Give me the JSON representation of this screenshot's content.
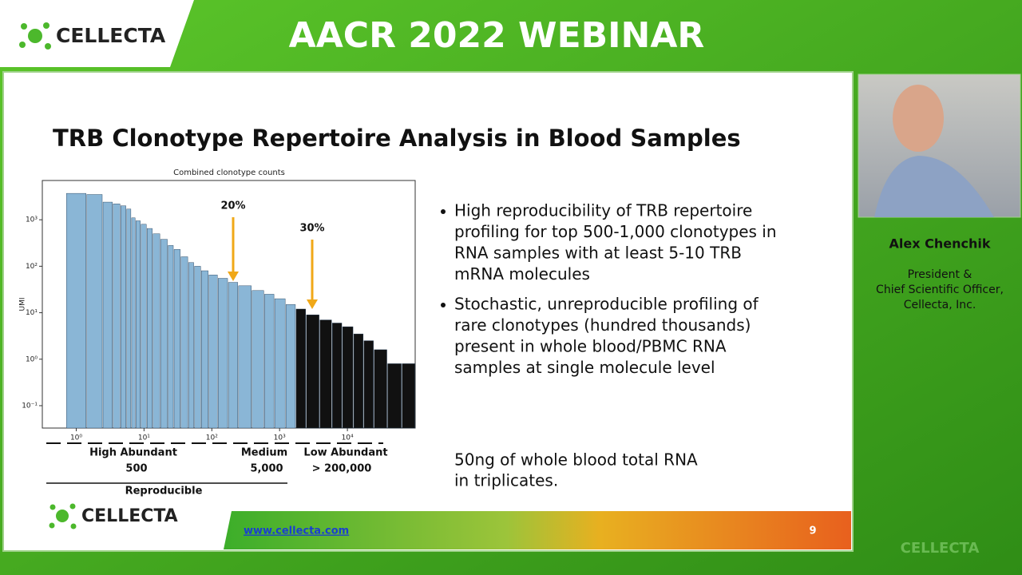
{
  "header": {
    "logo": "CELLECTA",
    "title": "AACR 2022 WEBINAR"
  },
  "slide": {
    "title": "TRB Clonotype Repertoire Analysis in Blood Samples",
    "bullets": [
      [
        "High reproducibility of TRB repertoire",
        "profiling for top 500-1,000 clonotypes in",
        "RNA samples with at least 5-10 TRB",
        "mRNA molecules"
      ],
      [
        "Stochastic, unreproducible profiling of",
        "rare clonotypes (hundred thousands)",
        "present in whole blood/PBMC RNA",
        "samples at single molecule level"
      ]
    ],
    "note": [
      "50ng of whole blood total RNA",
      "in triplicates."
    ],
    "groups": [
      {
        "name": "High Abundant",
        "count": "500"
      },
      {
        "name": "Medium",
        "count": "5,000"
      },
      {
        "name": "Low Abundant",
        "count": "> 200,000"
      }
    ],
    "reproducible": "Reproducible",
    "footer_logo": "CELLECTA",
    "url": "www.cellecta.com",
    "page": "9"
  },
  "chart_data": {
    "type": "bar",
    "title": "Combined clonotype counts",
    "y_label": "UMI",
    "xscale": "log",
    "yscale": "log",
    "x": [
      1,
      2,
      3,
      4,
      5,
      6,
      7,
      8,
      10,
      12,
      15,
      20,
      25,
      30,
      40,
      50,
      60,
      80,
      100,
      150,
      200,
      300,
      500,
      700,
      1000,
      1500,
      2000,
      3000,
      5000,
      7000,
      10000,
      15000,
      20000,
      30000,
      50000,
      80000
    ],
    "values": [
      3700,
      3500,
      2400,
      2200,
      2000,
      1700,
      1100,
      950,
      800,
      650,
      500,
      380,
      280,
      230,
      160,
      120,
      100,
      80,
      65,
      55,
      45,
      38,
      30,
      25,
      20,
      15,
      12,
      9,
      7,
      6,
      5,
      3.5,
      2.5,
      1.6,
      0.8,
      0.8
    ],
    "color": "#8ab6d6",
    "xlim": [
      0.316,
      100000
    ],
    "ylim": [
      0.033,
      7000
    ],
    "xticks": [
      {
        "value": 1,
        "label": "10⁰"
      },
      {
        "value": 10,
        "label": "10¹"
      },
      {
        "value": 100,
        "label": "10²"
      },
      {
        "value": 1000,
        "label": "10³"
      },
      {
        "value": 10000,
        "label": "10⁴"
      }
    ],
    "yticks": [
      {
        "value": 0.1,
        "label": "10⁻¹"
      },
      {
        "value": 1,
        "label": "10⁰"
      },
      {
        "value": 10,
        "label": "10¹"
      },
      {
        "value": 100,
        "label": "10²"
      },
      {
        "value": 1000,
        "label": "10³"
      }
    ],
    "annotations": [
      "20%",
      "30%"
    ]
  },
  "speaker": {
    "name": "Alex Chenchik",
    "role": [
      "President &",
      "Chief Scientific Officer,",
      "Cellecta, Inc."
    ]
  },
  "watermark": "CELLECTA"
}
